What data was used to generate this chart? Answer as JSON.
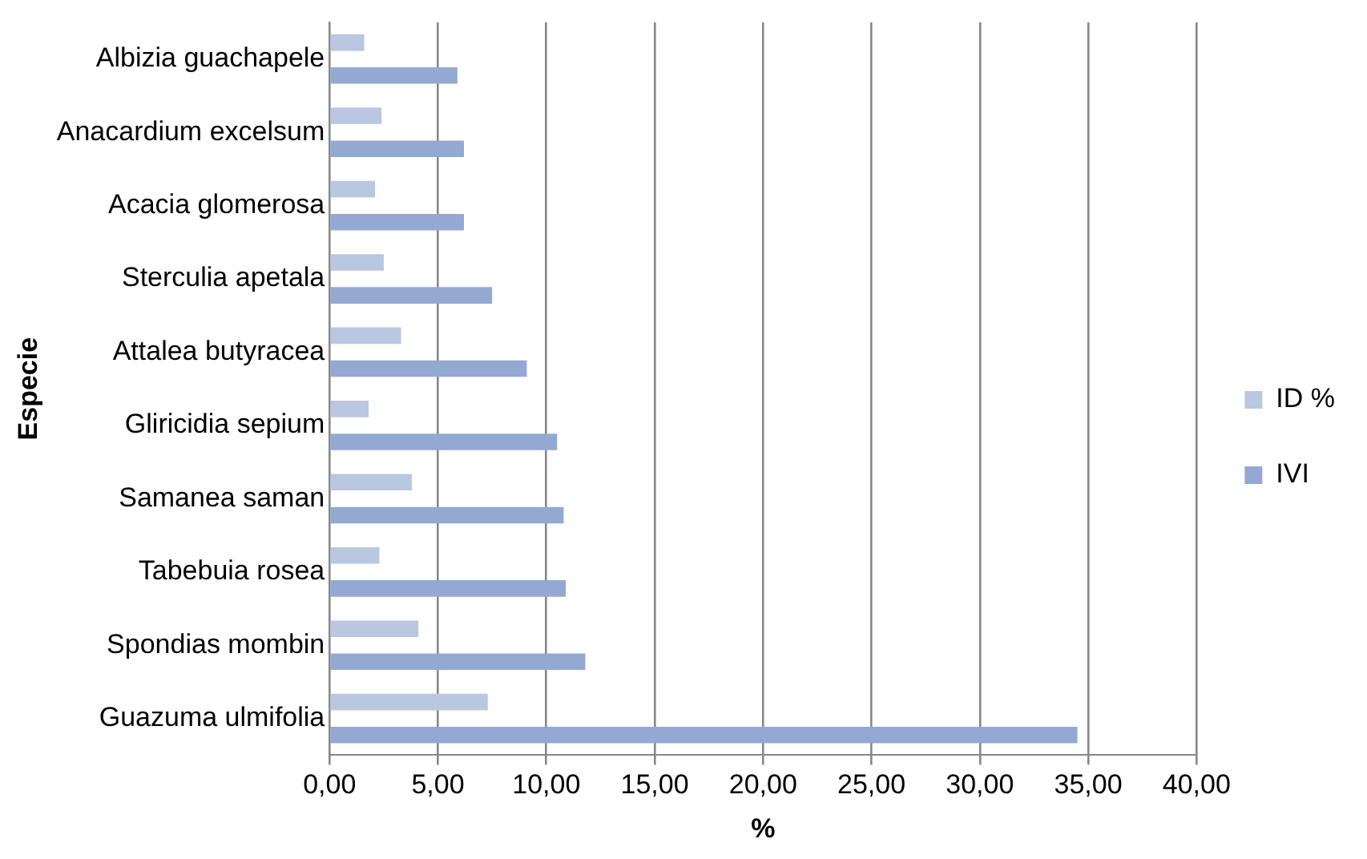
{
  "chart_data": {
    "type": "bar",
    "orientation": "horizontal",
    "xlabel": "%",
    "ylabel": "Especie",
    "categories": [
      "Albizia guachapele",
      "Anacardium excelsum",
      "Acacia glomerosa",
      "Sterculia apetala",
      "Attalea butyracea",
      "Gliricidia sepium",
      "Samanea saman",
      "Tabebuia rosea",
      "Spondias mombin",
      "Guazuma ulmifolia"
    ],
    "series": [
      {
        "name": "ID %",
        "color": "#b9c7e0",
        "values": [
          1.6,
          2.4,
          2.1,
          2.5,
          3.3,
          1.8,
          3.8,
          2.3,
          4.1,
          7.3
        ]
      },
      {
        "name": "IVI",
        "color": "#93a9d2",
        "values": [
          5.9,
          6.2,
          6.2,
          7.5,
          9.1,
          10.5,
          10.8,
          10.9,
          11.8,
          34.5
        ]
      }
    ],
    "xlim": [
      0,
      40
    ],
    "xticks": [
      {
        "value": 0,
        "label": "0,00"
      },
      {
        "value": 5,
        "label": "5,00"
      },
      {
        "value": 10,
        "label": "10,00"
      },
      {
        "value": 15,
        "label": "15,00"
      },
      {
        "value": 20,
        "label": "20,00"
      },
      {
        "value": 25,
        "label": "25,00"
      },
      {
        "value": 30,
        "label": "30,00"
      },
      {
        "value": 35,
        "label": "35,00"
      },
      {
        "value": 40,
        "label": "40,00"
      }
    ],
    "grid": "x",
    "legend": "right"
  }
}
